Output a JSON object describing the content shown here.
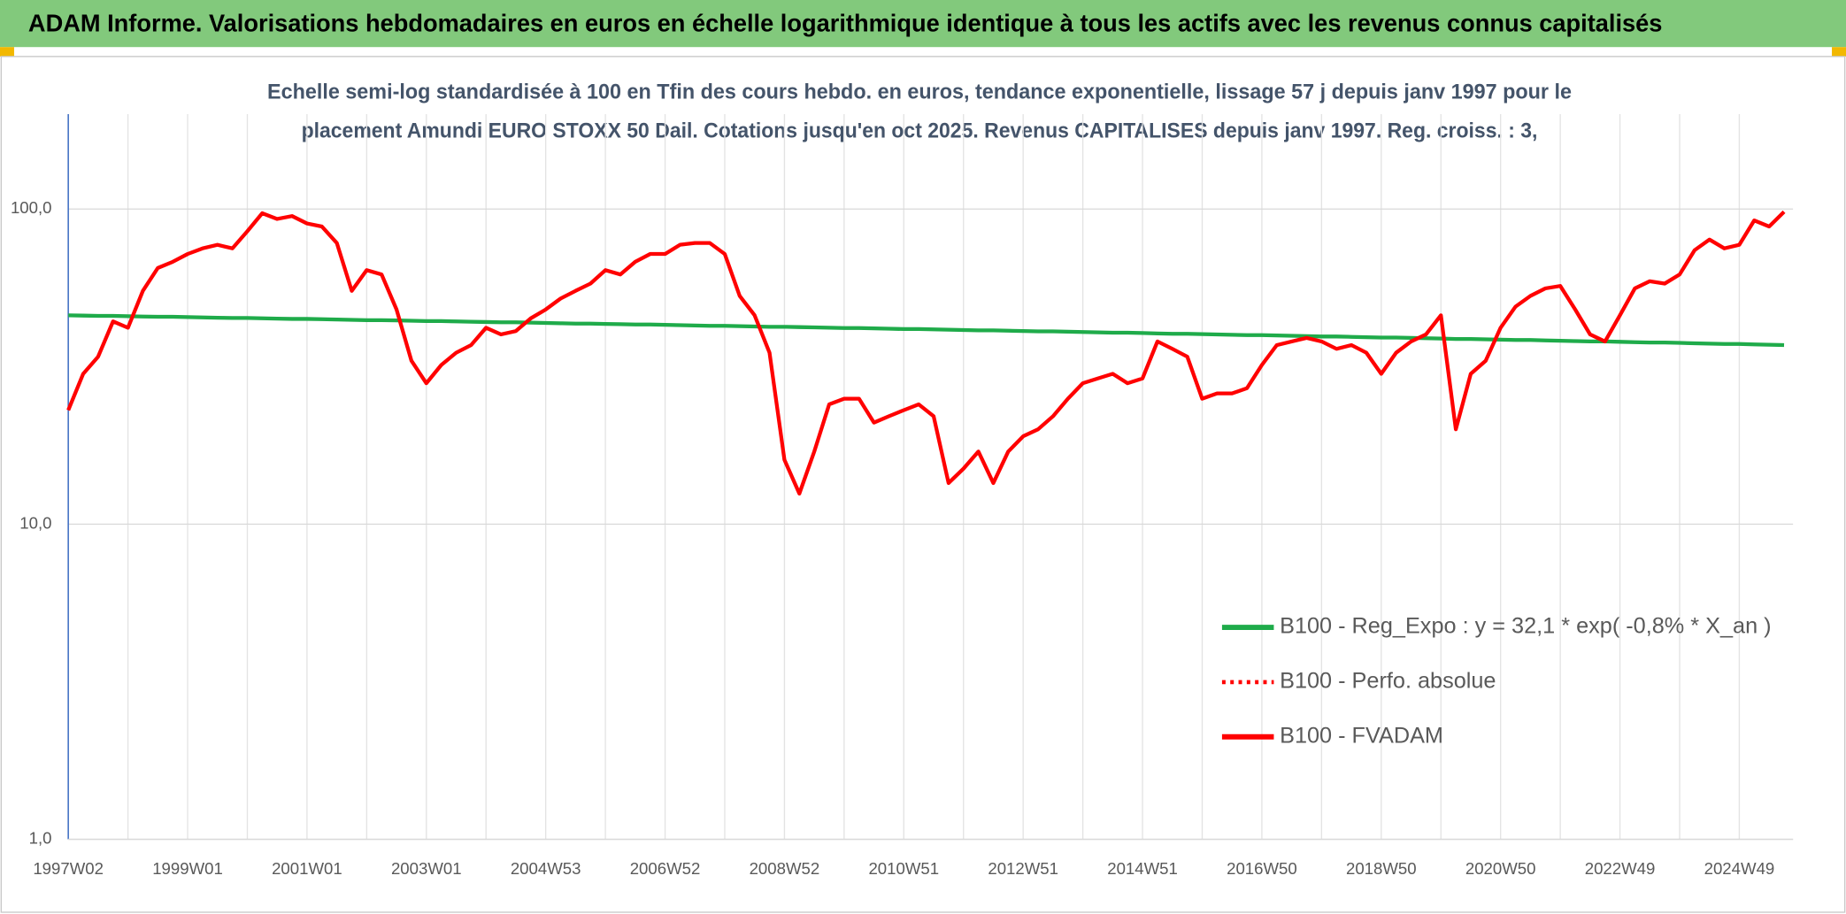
{
  "chart_data": {
    "type": "line",
    "title": "ADAM Informe. Valorisations hebdomadaires en euros en échelle logarithmique identique à tous les actifs avec les revenus connus capitalisés",
    "subtitle": [
      "Echelle semi-log standardisée à 100 en Tfin des cours hebdo. en euros, tendance exponentielle, lissage 57 j depuis janv 1997 pour le",
      "placement Amundi EURO STOXX 50 Dail. Cotations jusqu'en oct 2025. Revenus CAPITALISES depuis janv 1997. Reg. croiss. : 3,"
    ],
    "log_scale": true,
    "grid": true,
    "legend": "bottom-right",
    "ylim": [
      1,
      200
    ],
    "yticks": [
      {
        "value": 1,
        "label": "1,0"
      },
      {
        "value": 10,
        "label": "10,0"
      },
      {
        "value": 100,
        "label": "100,0"
      }
    ],
    "categories": [
      "1997W02",
      null,
      null,
      null,
      null,
      null,
      null,
      null,
      "1999W01",
      null,
      null,
      null,
      null,
      null,
      null,
      null,
      "2001W01",
      null,
      null,
      null,
      null,
      null,
      null,
      null,
      "2003W01",
      null,
      null,
      null,
      null,
      null,
      null,
      null,
      "2004W53",
      null,
      null,
      null,
      null,
      null,
      null,
      null,
      "2006W52",
      null,
      null,
      null,
      null,
      null,
      null,
      null,
      "2008W52",
      null,
      null,
      null,
      null,
      null,
      null,
      null,
      "2010W51",
      null,
      null,
      null,
      null,
      null,
      null,
      null,
      "2012W51",
      null,
      null,
      null,
      null,
      null,
      null,
      null,
      "2014W51",
      null,
      null,
      null,
      null,
      null,
      null,
      null,
      "2016W50",
      null,
      null,
      null,
      null,
      null,
      null,
      null,
      "2018W50",
      null,
      null,
      null,
      null,
      null,
      null,
      null,
      "2020W50",
      null,
      null,
      null,
      null,
      null,
      null,
      null,
      "2022W49",
      null,
      null,
      null,
      null,
      null,
      null,
      null,
      "2024W49",
      null,
      null,
      null
    ],
    "series": [
      {
        "name": "B100 - Reg_Expo : y = 32,1 * exp( -0,8% *  X_an )",
        "color": "#1fab4a",
        "style": "solid",
        "values": [
          46.0,
          45.9,
          45.8,
          45.8,
          45.7,
          45.6,
          45.5,
          45.5,
          45.4,
          45.3,
          45.2,
          45.1,
          45.1,
          45.0,
          44.9,
          44.8,
          44.8,
          44.7,
          44.6,
          44.5,
          44.4,
          44.4,
          44.3,
          44.2,
          44.1,
          44.1,
          44.0,
          43.9,
          43.8,
          43.7,
          43.7,
          43.6,
          43.5,
          43.4,
          43.3,
          43.3,
          43.2,
          43.1,
          43.0,
          43.0,
          42.9,
          42.8,
          42.7,
          42.6,
          42.6,
          42.5,
          42.4,
          42.3,
          42.3,
          42.2,
          42.1,
          42.0,
          41.9,
          41.9,
          41.8,
          41.7,
          41.6,
          41.6,
          41.5,
          41.4,
          41.3,
          41.2,
          41.2,
          41.1,
          41.0,
          40.9,
          40.9,
          40.8,
          40.7,
          40.6,
          40.5,
          40.5,
          40.4,
          40.3,
          40.2,
          40.2,
          40.1,
          40.0,
          39.9,
          39.8,
          39.8,
          39.7,
          39.6,
          39.5,
          39.4,
          39.4,
          39.3,
          39.2,
          39.1,
          39.1,
          39.0,
          38.9,
          38.8,
          38.7,
          38.7,
          38.6,
          38.5,
          38.4,
          38.4,
          38.3,
          38.2,
          38.1,
          38.0,
          38.0,
          37.9,
          37.8,
          37.7,
          37.7,
          37.6,
          37.5,
          37.4,
          37.3,
          37.3,
          37.2,
          37.1,
          37.0
        ]
      },
      {
        "name": "B100 - Perfo. absolue",
        "color": "#ff0000",
        "style": "dotted",
        "values": [
          23,
          30,
          34,
          44,
          42,
          55,
          65,
          68,
          72,
          75,
          77,
          75,
          85,
          97,
          93,
          95,
          90,
          88,
          78,
          55,
          64,
          62,
          48,
          33,
          28,
          32,
          35,
          37,
          42,
          40,
          41,
          45,
          48,
          52,
          55,
          58,
          64,
          62,
          68,
          72,
          72,
          77,
          78,
          78,
          72,
          53,
          46,
          35,
          16,
          12.5,
          17,
          24,
          25,
          25,
          21,
          22,
          23,
          24,
          22,
          13.5,
          15,
          17,
          13.5,
          17,
          19,
          20,
          22,
          25,
          28,
          29,
          30,
          28,
          29,
          38,
          36,
          34,
          25,
          26,
          26,
          27,
          32,
          37,
          38,
          39,
          38,
          36,
          37,
          35,
          30,
          35,
          38,
          40,
          46,
          20,
          30,
          33,
          42,
          49,
          53,
          56,
          57,
          48,
          40,
          38,
          46,
          56,
          59,
          58,
          62,
          74,
          80,
          75,
          77,
          92,
          88,
          98
        ]
      },
      {
        "name": "B100 - FVADAM",
        "color": "#ff0000",
        "style": "solid",
        "values": [
          23,
          30,
          34,
          44,
          42,
          55,
          65,
          68,
          72,
          75,
          77,
          75,
          85,
          97,
          93,
          95,
          90,
          88,
          78,
          55,
          64,
          62,
          48,
          33,
          28,
          32,
          35,
          37,
          42,
          40,
          41,
          45,
          48,
          52,
          55,
          58,
          64,
          62,
          68,
          72,
          72,
          77,
          78,
          78,
          72,
          53,
          46,
          35,
          16,
          12.5,
          17,
          24,
          25,
          25,
          21,
          22,
          23,
          24,
          22,
          13.5,
          15,
          17,
          13.5,
          17,
          19,
          20,
          22,
          25,
          28,
          29,
          30,
          28,
          29,
          38,
          36,
          34,
          25,
          26,
          26,
          27,
          32,
          37,
          38,
          39,
          38,
          36,
          37,
          35,
          30,
          35,
          38,
          40,
          46,
          20,
          30,
          33,
          42,
          49,
          53,
          56,
          57,
          48,
          40,
          38,
          46,
          56,
          59,
          58,
          62,
          74,
          80,
          75,
          77,
          92,
          88,
          98
        ]
      }
    ]
  }
}
